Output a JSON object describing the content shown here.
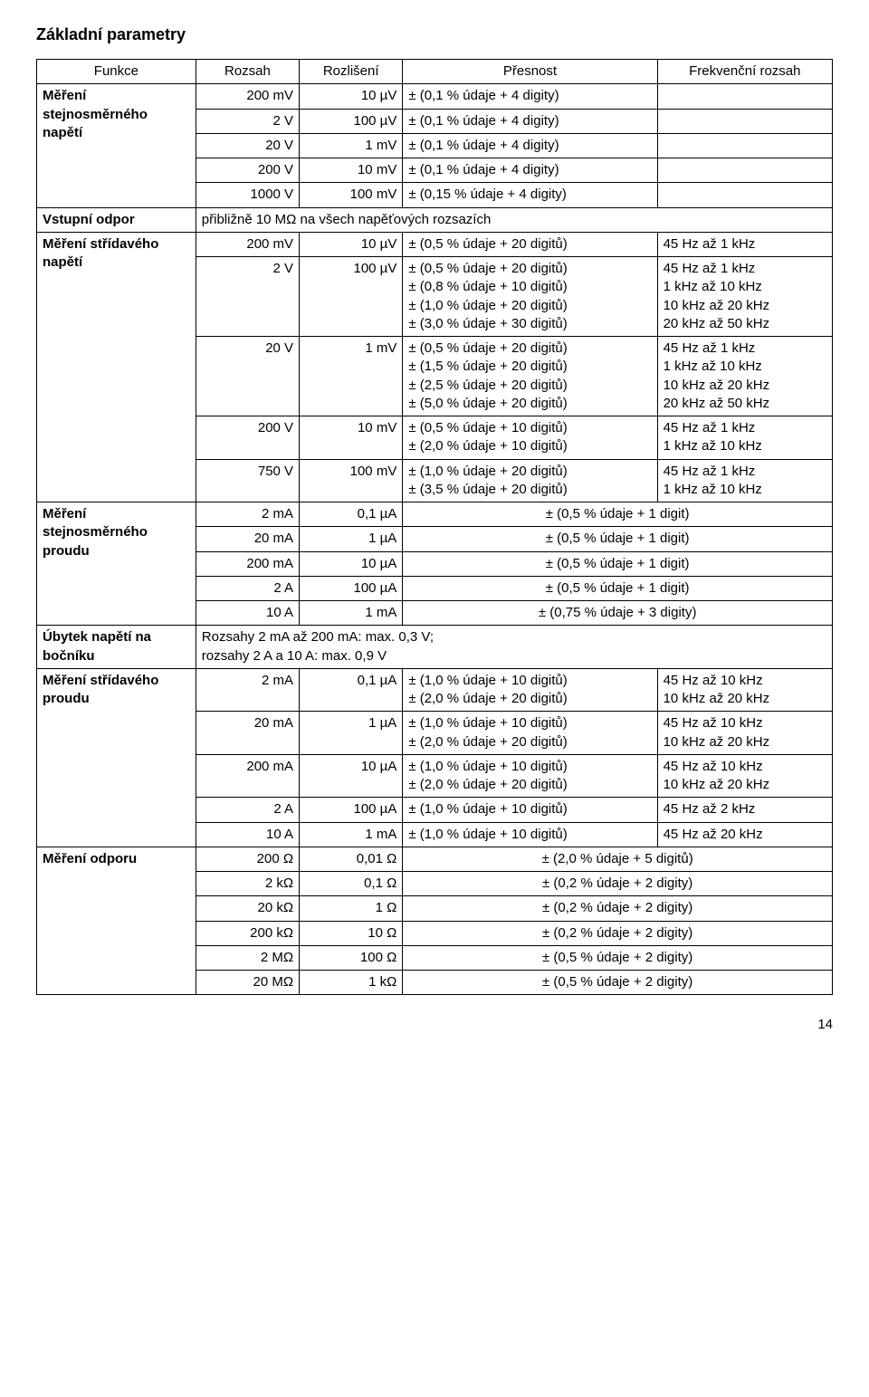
{
  "title": "Základní parametry",
  "header": {
    "c1": "Funkce",
    "c2": "Rozsah",
    "c3": "Rozlišení",
    "c4": "Přesnost",
    "c5": "Frekvenční rozsah"
  },
  "dcV": {
    "label": "Měření stejnosměrného napětí",
    "rows": [
      {
        "range": "200 mV",
        "res": "10 µV",
        "acc": "± (0,1 % údaje + 4 digity)"
      },
      {
        "range": "2 V",
        "res": "100 µV",
        "acc": "± (0,1 % údaje + 4 digity)"
      },
      {
        "range": "20 V",
        "res": "1 mV",
        "acc": "± (0,1 % údaje + 4 digity)"
      },
      {
        "range": "200 V",
        "res": "10 mV",
        "acc": "± (0,1 % údaje + 4 digity)"
      },
      {
        "range": "1000 V",
        "res": "100 mV",
        "acc": "± (0,15 % údaje + 4 digity)"
      }
    ]
  },
  "inputImp": {
    "label": "Vstupní odpor",
    "text": "přibližně 10 MΩ na všech napěťových rozsazích"
  },
  "acV": {
    "label": "Měření střídavého napětí",
    "rows": [
      {
        "range": "200 mV",
        "res": "10 µV",
        "lines": [
          {
            "acc": "± (0,5 % údaje + 20 digitů)",
            "freq": "45 Hz až 1 kHz"
          }
        ]
      },
      {
        "range": "2 V",
        "res": "100 µV",
        "lines": [
          {
            "acc": "± (0,5 % údaje + 20 digitů)",
            "freq": "45 Hz až 1 kHz"
          },
          {
            "acc": "± (0,8 % údaje + 10 digitů)",
            "freq": "1 kHz až 10 kHz"
          },
          {
            "acc": "± (1,0 % údaje + 20 digitů)",
            "freq": "10 kHz až 20 kHz"
          },
          {
            "acc": "± (3,0 % údaje + 30 digitů)",
            "freq": "20 kHz až 50 kHz"
          }
        ]
      },
      {
        "range": "20 V",
        "res": "1 mV",
        "lines": [
          {
            "acc": "± (0,5 % údaje + 20 digitů)",
            "freq": "45 Hz až 1 kHz"
          },
          {
            "acc": "± (1,5 % údaje + 20 digitů)",
            "freq": "1 kHz až 10 kHz"
          },
          {
            "acc": "± (2,5 % údaje + 20 digitů)",
            "freq": "10 kHz až 20 kHz"
          },
          {
            "acc": "± (5,0 % údaje + 20 digitů)",
            "freq": "20 kHz až 50 kHz"
          }
        ]
      },
      {
        "range": "200 V",
        "res": "10 mV",
        "lines": [
          {
            "acc": "± (0,5 % údaje + 10 digitů)",
            "freq": "45 Hz až 1 kHz"
          },
          {
            "acc": "± (2,0 % údaje + 10 digitů)",
            "freq": "1 kHz až 10 kHz"
          }
        ]
      },
      {
        "range": "750 V",
        "res": "100 mV",
        "lines": [
          {
            "acc": "± (1,0 % údaje + 20 digitů)",
            "freq": "45 Hz až 1 kHz"
          },
          {
            "acc": "± (3,5 % údaje + 20 digitů)",
            "freq": "1 kHz až 10 kHz"
          }
        ]
      }
    ]
  },
  "dcI": {
    "label": "Měření stejnosměrného proudu",
    "rows": [
      {
        "range": "2 mA",
        "res": "0,1 µA",
        "acc": "± (0,5 % údaje + 1 digit)"
      },
      {
        "range": "20 mA",
        "res": "1 µA",
        "acc": "± (0,5 % údaje + 1 digit)"
      },
      {
        "range": "200 mA",
        "res": "10 µA",
        "acc": "± (0,5 % údaje + 1 digit)"
      },
      {
        "range": "2 A",
        "res": "100 µA",
        "acc": "± (0,5 % údaje + 1 digit)"
      },
      {
        "range": "10 A",
        "res": "1 mA",
        "acc": "± (0,75 % údaje + 3 digity)"
      }
    ]
  },
  "burden": {
    "label": "Úbytek napětí na bočníku",
    "line1": "Rozsahy 2 mA až 200 mA: max. 0,3 V;",
    "line2": "rozsahy 2 A a 10 A: max. 0,9 V"
  },
  "acI": {
    "label": "Měření střídavého proudu",
    "rows": [
      {
        "range": "2 mA",
        "res": "0,1 µA",
        "lines": [
          {
            "acc": "± (1,0 % údaje + 10 digitů)",
            "freq": "45 Hz až 10 kHz"
          },
          {
            "acc": "± (2,0 % údaje + 20 digitů)",
            "freq": "10 kHz až 20 kHz"
          }
        ]
      },
      {
        "range": "20 mA",
        "res": "1 µA",
        "lines": [
          {
            "acc": "± (1,0 % údaje + 10 digitů)",
            "freq": "45 Hz až 10 kHz"
          },
          {
            "acc": "± (2,0 % údaje + 20 digitů)",
            "freq": "10 kHz až 20 kHz"
          }
        ]
      },
      {
        "range": "200 mA",
        "res": "10 µA",
        "lines": [
          {
            "acc": "± (1,0 % údaje + 10 digitů)",
            "freq": "45 Hz až 10 kHz"
          },
          {
            "acc": "± (2,0 % údaje + 20 digitů)",
            "freq": "10 kHz až 20 kHz"
          }
        ]
      },
      {
        "range": "2 A",
        "res": "100 µA",
        "lines": [
          {
            "acc": "± (1,0 % údaje + 10 digitů)",
            "freq": "45 Hz až 2 kHz"
          }
        ]
      },
      {
        "range": "10 A",
        "res": "1 mA",
        "lines": [
          {
            "acc": "± (1,0 % údaje + 10 digitů)",
            "freq": "45 Hz až 20 kHz"
          }
        ]
      }
    ]
  },
  "res": {
    "label": "Měření odporu",
    "rows": [
      {
        "range": "200 Ω",
        "res": "0,01 Ω",
        "acc": "± (2,0 % údaje + 5 digitů)"
      },
      {
        "range": "2 kΩ",
        "res": "0,1 Ω",
        "acc": "± (0,2 % údaje + 2 digity)"
      },
      {
        "range": "20 kΩ",
        "res": "1 Ω",
        "acc": "± (0,2 % údaje + 2 digity)"
      },
      {
        "range": "200 kΩ",
        "res": "10 Ω",
        "acc": "± (0,2 % údaje + 2 digity)"
      },
      {
        "range": "2 MΩ",
        "res": "100 Ω",
        "acc": "± (0,5 % údaje + 2 digity)"
      },
      {
        "range": "20 MΩ",
        "res": "1 kΩ",
        "acc": "± (0,5 % údaje + 2 digity)"
      }
    ]
  },
  "pageNumber": "14"
}
